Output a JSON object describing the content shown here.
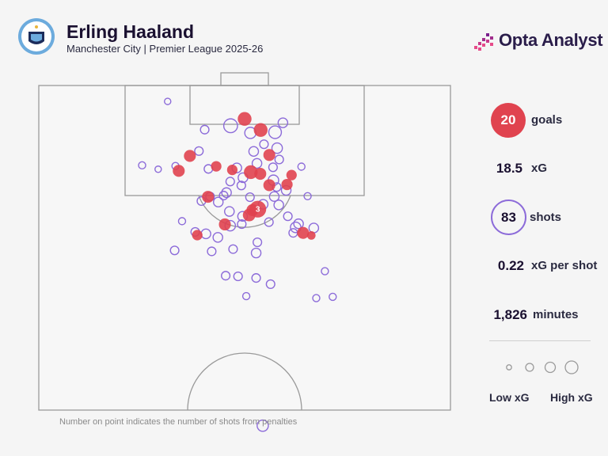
{
  "header": {
    "title": "Erling Haaland",
    "subtitle": "Manchester City | Premier League 2025-26",
    "crest_text": "MANCHESTER CITY",
    "brand": "Opta Analyst"
  },
  "colors": {
    "goal": "#e0434f",
    "shot": "#8c6bd9",
    "pitch_line": "#9a9a9a",
    "text": "#1a1030",
    "crest": "#6cabdd"
  },
  "stats": {
    "goals": {
      "value": "20",
      "label": "goals"
    },
    "xg": {
      "value": "18.5",
      "label": "xG"
    },
    "shots": {
      "value": "83",
      "label": "shots"
    },
    "xg_per_shot": {
      "value": "0.22",
      "label": "xG per shot"
    },
    "minutes": {
      "value": "1,826",
      "label": "minutes"
    }
  },
  "legend": {
    "low": "Low xG",
    "high": "High xG"
  },
  "footnote": "Number on point indicates the number of shots from penalties",
  "chart_data": {
    "type": "scatter",
    "series": [
      {
        "name": "goals",
        "points": [
          {
            "x": 50,
            "y": 10.3,
            "xg": 0.45
          },
          {
            "x": 53.9,
            "y": 13.7,
            "xg": 0.45
          },
          {
            "x": 36.7,
            "y": 21.7,
            "xg": 0.3
          },
          {
            "x": 43.1,
            "y": 24.9,
            "xg": 0.2
          },
          {
            "x": 34,
            "y": 26.3,
            "xg": 0.3
          },
          {
            "x": 56,
            "y": 21.4,
            "xg": 0.3
          },
          {
            "x": 60.3,
            "y": 30.5,
            "xg": 0.25
          },
          {
            "x": 51.5,
            "y": 26.7,
            "xg": 0.45
          },
          {
            "x": 53.8,
            "y": 27.2,
            "xg": 0.3
          },
          {
            "x": 56,
            "y": 30.7,
            "xg": 0.3
          },
          {
            "x": 41.1,
            "y": 34.3,
            "xg": 0.3
          },
          {
            "x": 51.9,
            "y": 38.4,
            "xg": 0.3
          },
          {
            "x": 51.1,
            "y": 39.9,
            "xg": 0.35
          },
          {
            "x": 45.2,
            "y": 42.8,
            "xg": 0.3
          },
          {
            "x": 64.2,
            "y": 45.4,
            "xg": 0.3
          },
          {
            "x": 66.2,
            "y": 46.2,
            "xg": 0.1
          },
          {
            "x": 38.5,
            "y": 46.1,
            "xg": 0.2
          },
          {
            "x": 61.4,
            "y": 27.6,
            "xg": 0.2
          },
          {
            "x": 47,
            "y": 26,
            "xg": 0.2
          },
          {
            "x": 53.2,
            "y": 38.1,
            "xg": 0.76,
            "penalties": 3
          }
        ]
      },
      {
        "name": "shots",
        "points": [
          {
            "x": 31.3,
            "y": 4.9,
            "xg": 0.03
          },
          {
            "x": 46.6,
            "y": 12.4,
            "xg": 0.45
          },
          {
            "x": 40.3,
            "y": 13.6,
            "xg": 0.1
          },
          {
            "x": 51.4,
            "y": 14.6,
            "xg": 0.25
          },
          {
            "x": 57.4,
            "y": 14.4,
            "xg": 0.35
          },
          {
            "x": 59.3,
            "y": 11.5,
            "xg": 0.15
          },
          {
            "x": 54.7,
            "y": 18.1,
            "xg": 0.1
          },
          {
            "x": 57.9,
            "y": 19.3,
            "xg": 0.2
          },
          {
            "x": 52.2,
            "y": 20.3,
            "xg": 0.15
          },
          {
            "x": 29,
            "y": 25.8,
            "xg": 0.03
          },
          {
            "x": 33.2,
            "y": 24.8,
            "xg": 0.05
          },
          {
            "x": 41.2,
            "y": 25.7,
            "xg": 0.1
          },
          {
            "x": 48.1,
            "y": 25.4,
            "xg": 0.15
          },
          {
            "x": 49.6,
            "y": 28.4,
            "xg": 0.15
          },
          {
            "x": 56.9,
            "y": 25.2,
            "xg": 0.1
          },
          {
            "x": 57,
            "y": 29.2,
            "xg": 0.2
          },
          {
            "x": 57.2,
            "y": 34.2,
            "xg": 0.15
          },
          {
            "x": 54.5,
            "y": 36.6,
            "xg": 0.15
          },
          {
            "x": 65.3,
            "y": 34.1,
            "xg": 0.05
          },
          {
            "x": 39.5,
            "y": 35.6,
            "xg": 0.1
          },
          {
            "x": 43.6,
            "y": 35.9,
            "xg": 0.15
          },
          {
            "x": 46.3,
            "y": 38.8,
            "xg": 0.15
          },
          {
            "x": 49.5,
            "y": 40.3,
            "xg": 0.15
          },
          {
            "x": 58.3,
            "y": 36.8,
            "xg": 0.15
          },
          {
            "x": 60.5,
            "y": 40.3,
            "xg": 0.1
          },
          {
            "x": 46.5,
            "y": 29.6,
            "xg": 0.1
          },
          {
            "x": 45.6,
            "y": 33,
            "xg": 0.15
          },
          {
            "x": 34.8,
            "y": 41.8,
            "xg": 0.05
          },
          {
            "x": 38,
            "y": 45.1,
            "xg": 0.1
          },
          {
            "x": 40.6,
            "y": 45.7,
            "xg": 0.15
          },
          {
            "x": 43.5,
            "y": 46.8,
            "xg": 0.15
          },
          {
            "x": 46.5,
            "y": 43.2,
            "xg": 0.2
          },
          {
            "x": 49.3,
            "y": 42.7,
            "xg": 0.1
          },
          {
            "x": 55.9,
            "y": 42.1,
            "xg": 0.1
          },
          {
            "x": 63.1,
            "y": 42.6,
            "xg": 0.15
          },
          {
            "x": 66.8,
            "y": 43.9,
            "xg": 0.15
          },
          {
            "x": 61.8,
            "y": 45.4,
            "xg": 0.1
          },
          {
            "x": 42,
            "y": 51.1,
            "xg": 0.1
          },
          {
            "x": 47.2,
            "y": 50.4,
            "xg": 0.1
          },
          {
            "x": 53.1,
            "y": 48.3,
            "xg": 0.1
          },
          {
            "x": 52.8,
            "y": 51.6,
            "xg": 0.15
          },
          {
            "x": 33,
            "y": 50.8,
            "xg": 0.1
          },
          {
            "x": 62.4,
            "y": 43.7,
            "xg": 0.2
          },
          {
            "x": 45.4,
            "y": 58.6,
            "xg": 0.1
          },
          {
            "x": 48.4,
            "y": 58.8,
            "xg": 0.1
          },
          {
            "x": 52.8,
            "y": 59.3,
            "xg": 0.1
          },
          {
            "x": 56.3,
            "y": 61.2,
            "xg": 0.1
          },
          {
            "x": 50.4,
            "y": 64.9,
            "xg": 0.05
          },
          {
            "x": 69.5,
            "y": 57.2,
            "xg": 0.05
          },
          {
            "x": 67.4,
            "y": 65.5,
            "xg": 0.05
          },
          {
            "x": 71.4,
            "y": 65.1,
            "xg": 0.05
          },
          {
            "x": 25.1,
            "y": 24.6,
            "xg": 0.05
          },
          {
            "x": 63.8,
            "y": 25,
            "xg": 0.05
          },
          {
            "x": 38.9,
            "y": 20.2,
            "xg": 0.1
          },
          {
            "x": 41.6,
            "y": 34.2,
            "xg": 0.1
          },
          {
            "x": 60.1,
            "y": 32.3,
            "xg": 0.15
          },
          {
            "x": 58.4,
            "y": 22.8,
            "xg": 0.1
          },
          {
            "x": 53,
            "y": 24,
            "xg": 0.15
          },
          {
            "x": 49.2,
            "y": 30.8,
            "xg": 0.1
          },
          {
            "x": 54.4,
            "y": 104.8,
            "xg": 0.25
          },
          {
            "x": 44.9,
            "y": 33.9,
            "xg": 0.1
          },
          {
            "x": 51.3,
            "y": 34.4,
            "xg": 0.1
          },
          {
            "x": 57.8,
            "y": 31.3,
            "xg": 0.1
          }
        ]
      }
    ],
    "legend": [
      "Low xG",
      "High xG"
    ],
    "xlim": [
      0,
      100
    ],
    "ylim": [
      0,
      100
    ]
  }
}
